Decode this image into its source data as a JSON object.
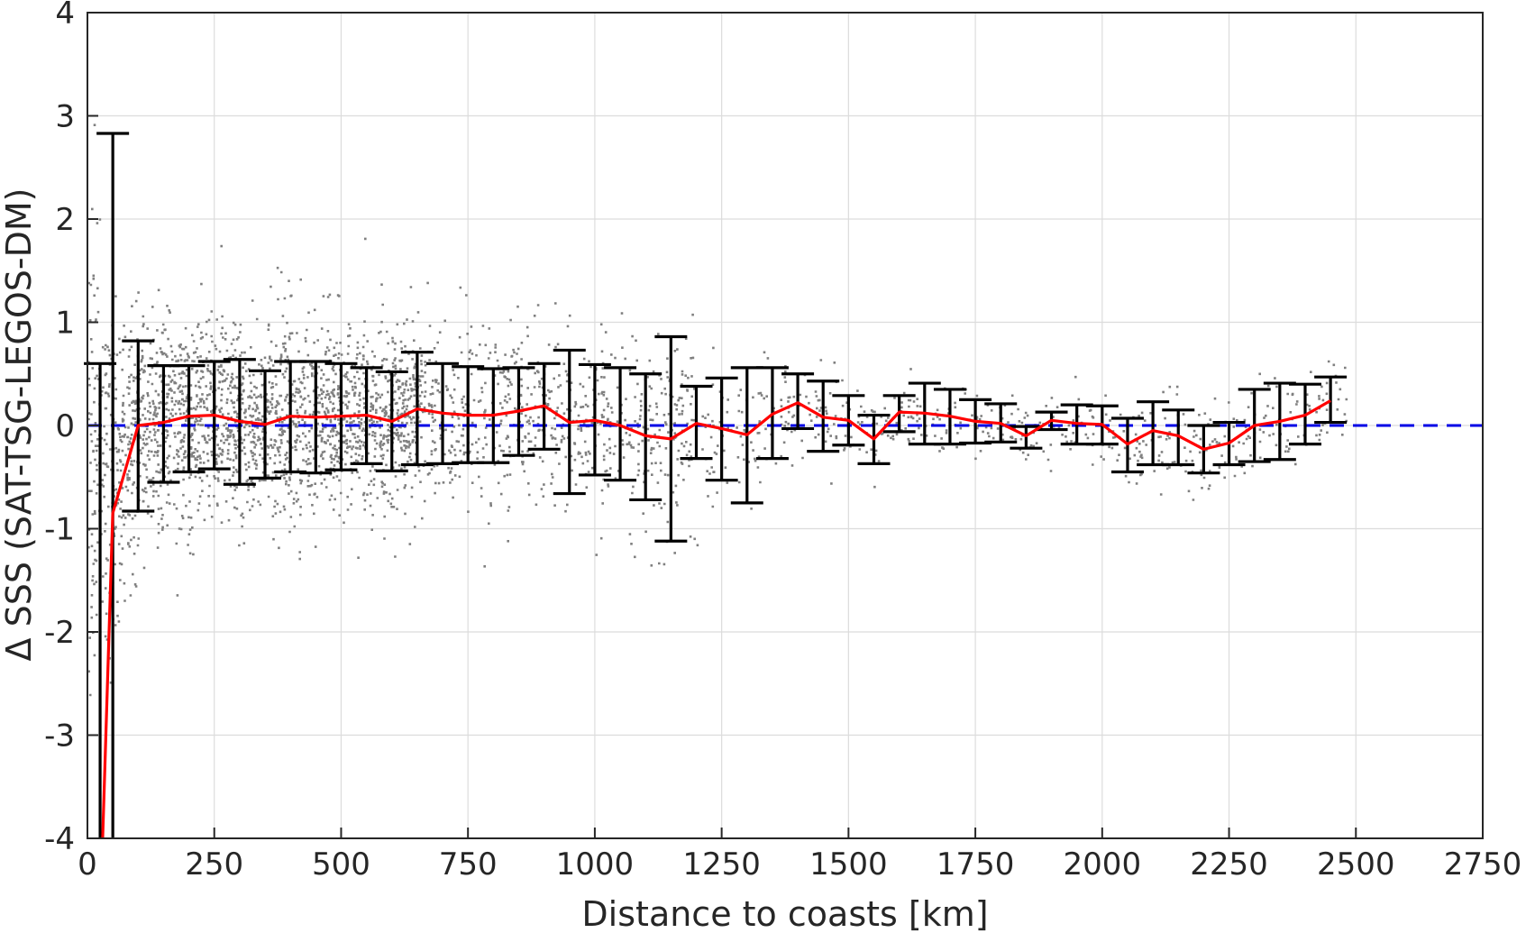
{
  "chart_data": {
    "type": "scatter",
    "xlabel": "Distance to coasts [km]",
    "ylabel": "Δ SSS (SAT-TSG-LEGOS-DM)",
    "xlim": [
      0,
      2750
    ],
    "ylim": [
      -4,
      4
    ],
    "xticks": [
      0,
      250,
      500,
      750,
      1000,
      1250,
      1500,
      1750,
      2000,
      2250,
      2500,
      2750
    ],
    "yticks": [
      -4,
      -3,
      -2,
      -1,
      0,
      1,
      2,
      3,
      4
    ],
    "grid": true,
    "colors": {
      "scatter": "#808080",
      "mean_line": "#ff0000",
      "error_bars": "#000000",
      "zero_line": "#0000e6"
    },
    "zero_line": {
      "y": 0,
      "style": "dashed"
    },
    "scatter_spread": [
      {
        "x": 0,
        "sd": 1.2
      },
      {
        "x": 50,
        "sd": 0.75
      },
      {
        "x": 100,
        "sd": 0.55
      },
      {
        "x": 250,
        "sd": 0.5
      },
      {
        "x": 500,
        "sd": 0.45
      },
      {
        "x": 700,
        "sd": 0.45
      },
      {
        "x": 900,
        "sd": 0.4
      },
      {
        "x": 1150,
        "sd": 0.55
      },
      {
        "x": 1300,
        "sd": 0.3
      },
      {
        "x": 1500,
        "sd": 0.2
      },
      {
        "x": 1800,
        "sd": 0.15
      },
      {
        "x": 2100,
        "sd": 0.2
      },
      {
        "x": 2300,
        "sd": 0.25
      },
      {
        "x": 2450,
        "sd": 0.2
      }
    ],
    "series": [
      {
        "type": "errorbar",
        "x": [
          25,
          50,
          100,
          150,
          200,
          250,
          300,
          350,
          400,
          450,
          500,
          550,
          600,
          650,
          700,
          750,
          800,
          850,
          900,
          950,
          1000,
          1050,
          1100,
          1150,
          1200,
          1250,
          1300,
          1350,
          1400,
          1450,
          1500,
          1550,
          1600,
          1650,
          1700,
          1750,
          1800,
          1850,
          1900,
          1950,
          2000,
          2050,
          2100,
          2150,
          2200,
          2250,
          2300,
          2350,
          2400,
          2450
        ],
        "upper": [
          0.6,
          2.83,
          0.82,
          0.58,
          0.58,
          0.62,
          0.64,
          0.53,
          0.62,
          0.62,
          0.6,
          0.56,
          0.52,
          0.71,
          0.6,
          0.57,
          0.55,
          0.56,
          0.6,
          0.73,
          0.59,
          0.56,
          0.5,
          0.86,
          0.38,
          0.46,
          0.56,
          0.56,
          0.5,
          0.43,
          0.29,
          0.1,
          0.29,
          0.41,
          0.35,
          0.25,
          0.21,
          -0.01,
          0.13,
          0.2,
          0.19,
          0.07,
          0.23,
          0.15,
          0.0,
          0.03,
          0.35,
          0.41,
          0.4,
          0.47
        ],
        "lower": [
          -4.0,
          -4.0,
          -0.83,
          -0.55,
          -0.45,
          -0.42,
          -0.57,
          -0.51,
          -0.45,
          -0.46,
          -0.43,
          -0.37,
          -0.44,
          -0.38,
          -0.37,
          -0.36,
          -0.36,
          -0.29,
          -0.23,
          -0.66,
          -0.48,
          -0.53,
          -0.72,
          -1.12,
          -0.32,
          -0.53,
          -0.75,
          -0.32,
          -0.03,
          -0.25,
          -0.19,
          -0.37,
          -0.06,
          -0.18,
          -0.18,
          -0.17,
          -0.16,
          -0.22,
          -0.04,
          -0.18,
          -0.18,
          -0.45,
          -0.38,
          -0.38,
          -0.46,
          -0.38,
          -0.35,
          -0.33,
          -0.18,
          0.03
        ]
      },
      {
        "type": "line",
        "x": [
          30,
          50,
          100,
          150,
          200,
          250,
          300,
          350,
          400,
          450,
          500,
          550,
          600,
          650,
          700,
          750,
          800,
          850,
          900,
          950,
          1000,
          1050,
          1100,
          1150,
          1200,
          1250,
          1300,
          1350,
          1400,
          1450,
          1500,
          1550,
          1600,
          1650,
          1700,
          1750,
          1800,
          1850,
          1900,
          1950,
          2000,
          2050,
          2100,
          2150,
          2200,
          2250,
          2300,
          2350,
          2400,
          2450
        ],
        "y": [
          -4.0,
          -0.85,
          0.0,
          0.03,
          0.09,
          0.1,
          0.04,
          0.01,
          0.09,
          0.08,
          0.09,
          0.1,
          0.04,
          0.16,
          0.12,
          0.1,
          0.1,
          0.14,
          0.19,
          0.03,
          0.05,
          0.0,
          -0.1,
          -0.13,
          0.02,
          -0.03,
          -0.09,
          0.11,
          0.22,
          0.08,
          0.05,
          -0.13,
          0.13,
          0.12,
          0.09,
          0.04,
          0.02,
          -0.1,
          0.05,
          0.02,
          0.01,
          -0.18,
          -0.05,
          -0.1,
          -0.23,
          -0.17,
          0.0,
          0.04,
          0.1,
          0.24
        ]
      }
    ]
  }
}
